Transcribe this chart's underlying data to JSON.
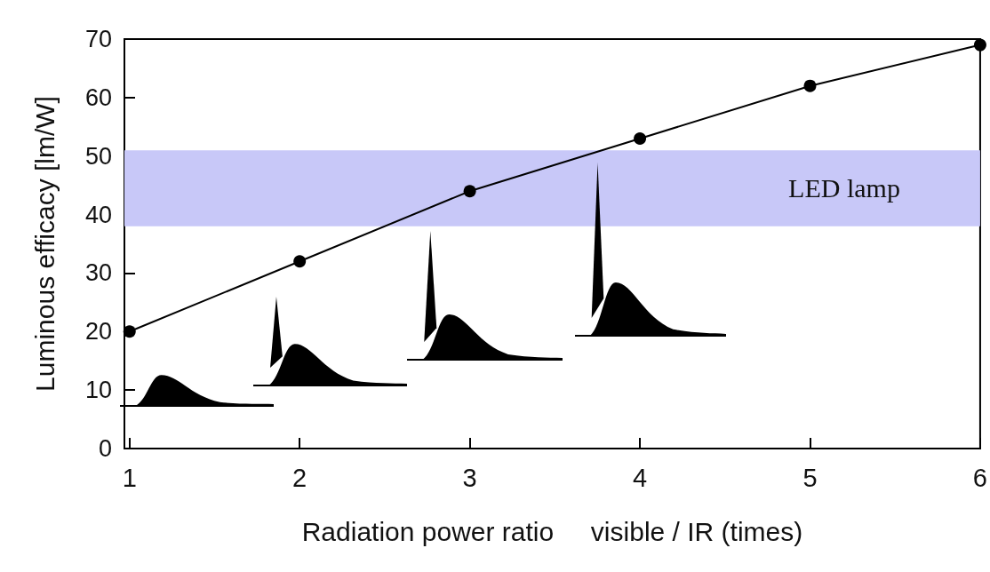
{
  "chart_data": {
    "type": "line",
    "xlabel": "Radiation power ratio     visible / IR (times)",
    "ylabel": "Luminous efficacy [lm/W]",
    "x": [
      1,
      2,
      3,
      4,
      5,
      6
    ],
    "series": [
      {
        "color": "#000000",
        "values": [
          20,
          32,
          44,
          53,
          62,
          69
        ]
      }
    ],
    "xlim": [
      0.97,
      6
    ],
    "xticks": [
      1,
      2,
      3,
      4,
      5,
      6
    ],
    "ylim": [
      0,
      70
    ],
    "yticks": [
      0,
      10,
      20,
      30,
      40,
      50,
      60,
      70
    ],
    "bands": [
      {
        "axis": "y",
        "from": 38,
        "to": 51,
        "label": "LED lamp",
        "color": "#c8c8f8"
      }
    ],
    "marker": "circle",
    "line_style": "solid"
  }
}
